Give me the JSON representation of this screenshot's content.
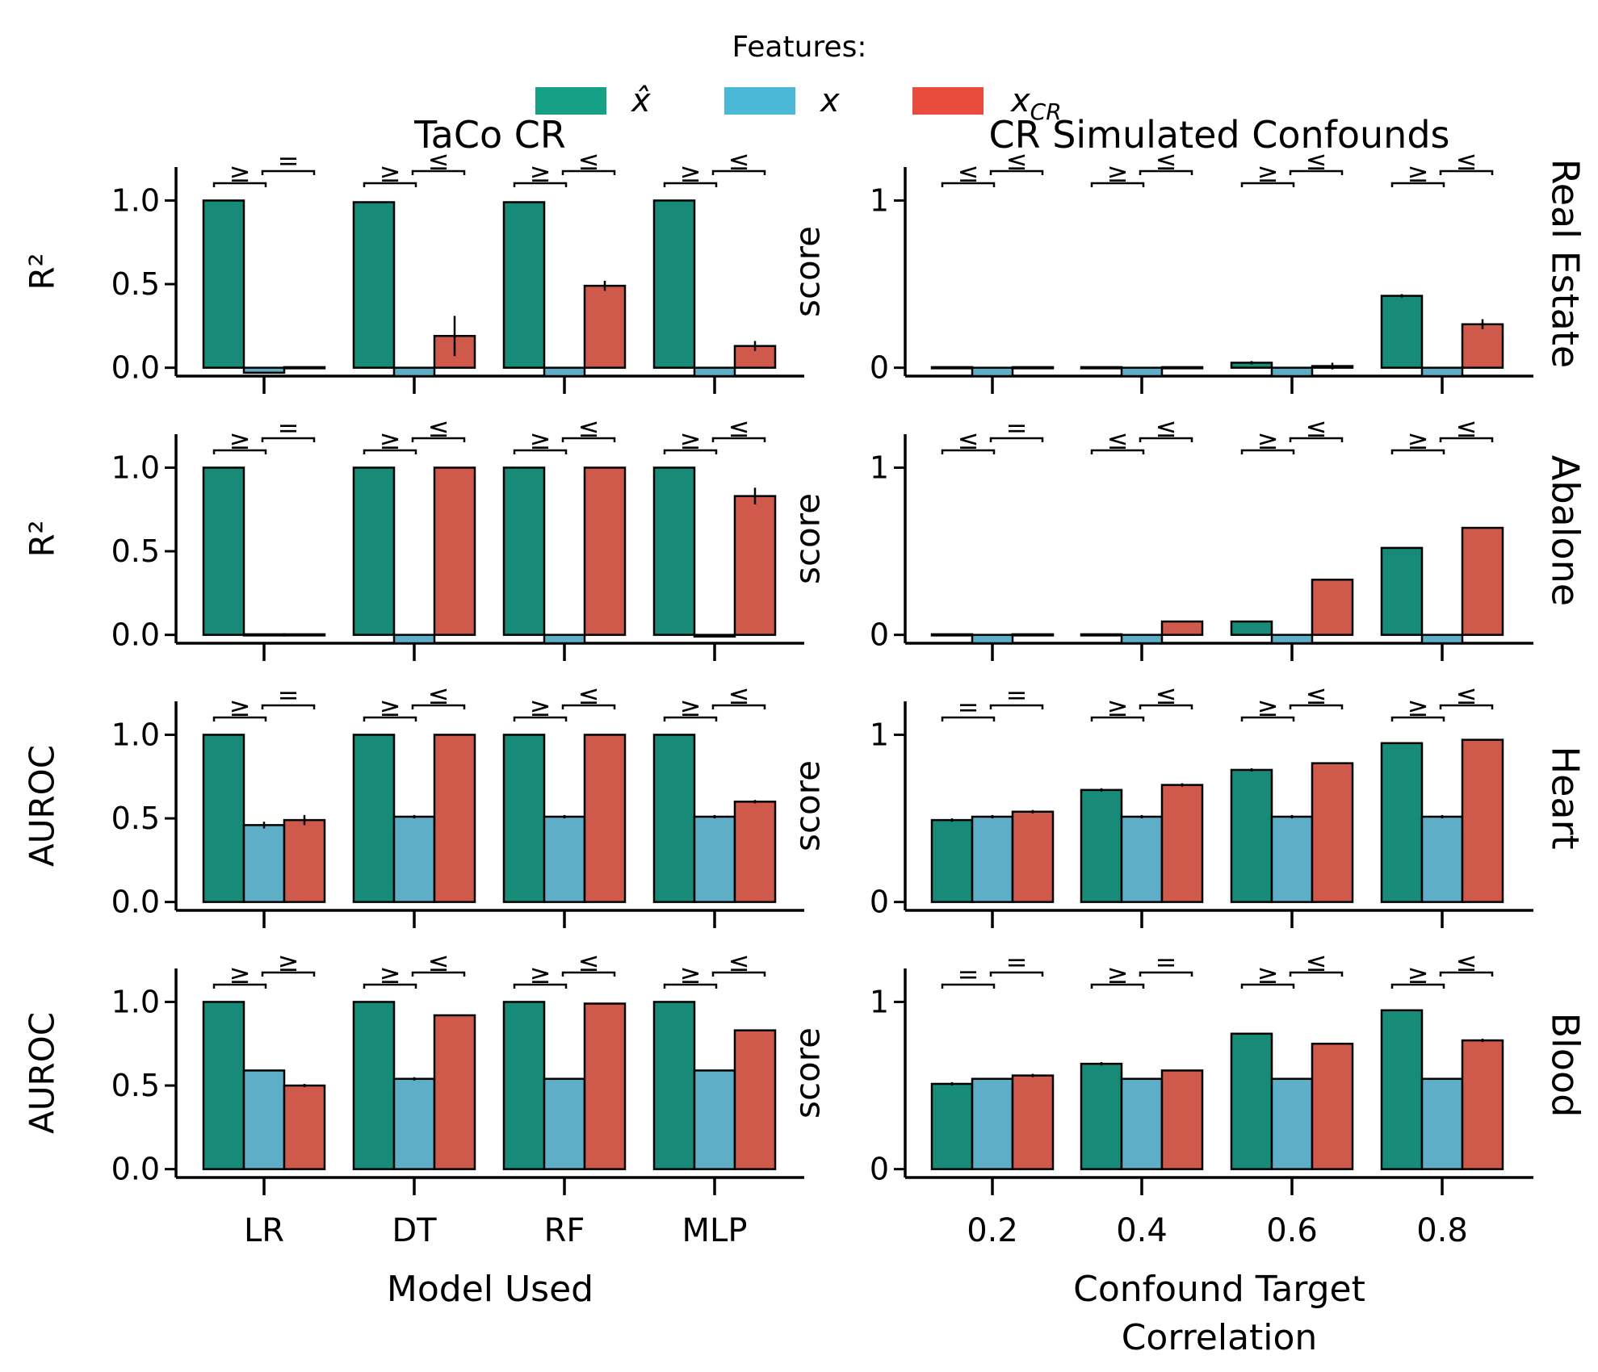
{
  "legend": {
    "title": "Features:",
    "entries": [
      {
        "label": "x̂",
        "sub": "",
        "color": "#16a085"
      },
      {
        "label": "x",
        "sub": "",
        "color": "#4ab8d6"
      },
      {
        "label": "x",
        "sub": "CR",
        "color": "#e74c3c"
      }
    ]
  },
  "colors": {
    "bar_xhat": "#178b78",
    "bar_x": "#5eaec7",
    "bar_xcr": "#cf5a4c",
    "axis": "#000000"
  },
  "chart_data": [
    {
      "type": "bar",
      "column_title": "TaCo CR",
      "row_label": "",
      "ylabel": "R²",
      "xlabel": "",
      "categories": [
        "LR",
        "DT",
        "RF",
        "MLP"
      ],
      "ylim": [
        -0.05,
        1.2
      ],
      "yticks": [
        "0.0",
        "0.5",
        "1.0"
      ],
      "ytick_values": [
        0,
        0.5,
        1.0
      ],
      "series": [
        {
          "values": [
            1.0,
            0.99,
            0.99,
            1.0
          ],
          "errors": [
            0,
            0,
            0,
            0
          ]
        },
        {
          "values": [
            -0.03,
            -0.05,
            -0.05,
            -0.05
          ],
          "errors": [
            0,
            0,
            0,
            0
          ]
        },
        {
          "values": [
            0.0,
            0.19,
            0.49,
            0.13
          ],
          "errors": [
            0,
            0.12,
            0.03,
            0.03
          ]
        }
      ],
      "significance": [
        [
          "≥",
          "="
        ],
        [
          "≥",
          "≤"
        ],
        [
          "≥",
          "≤"
        ],
        [
          "≥",
          "≤"
        ]
      ]
    },
    {
      "type": "bar",
      "column_title": "CR Simulated Confounds",
      "row_label": "Real Estate",
      "ylabel": "score",
      "xlabel": "",
      "categories": [
        "0.2",
        "0.4",
        "0.6",
        "0.8"
      ],
      "ylim": [
        -0.05,
        1.2
      ],
      "yticks": [
        "0",
        "1"
      ],
      "ytick_values": [
        0,
        1
      ],
      "series": [
        {
          "values": [
            0.0,
            0.0,
            0.03,
            0.43
          ],
          "errors": [
            0,
            0,
            0.01,
            0.01
          ]
        },
        {
          "values": [
            -0.05,
            -0.05,
            -0.05,
            -0.05
          ],
          "errors": [
            0,
            0,
            0,
            0
          ]
        },
        {
          "values": [
            0.0,
            0.0,
            0.01,
            0.26
          ],
          "errors": [
            0,
            0,
            0.02,
            0.03
          ]
        }
      ],
      "significance": [
        [
          "≤",
          "≤"
        ],
        [
          "≥",
          "≤"
        ],
        [
          "≥",
          "≤"
        ],
        [
          "≥",
          "≤"
        ]
      ]
    },
    {
      "type": "bar",
      "column_title": "",
      "row_label": "",
      "ylabel": "R²",
      "xlabel": "",
      "categories": [
        "LR",
        "DT",
        "RF",
        "MLP"
      ],
      "ylim": [
        -0.05,
        1.2
      ],
      "yticks": [
        "0.0",
        "0.5",
        "1.0"
      ],
      "ytick_values": [
        0,
        0.5,
        1.0
      ],
      "series": [
        {
          "values": [
            1.0,
            1.0,
            1.0,
            1.0
          ],
          "errors": [
            0,
            0,
            0,
            0
          ]
        },
        {
          "values": [
            0.0,
            -0.05,
            -0.05,
            -0.01
          ],
          "errors": [
            0,
            0,
            0,
            0
          ]
        },
        {
          "values": [
            0.0,
            1.0,
            1.0,
            0.83
          ],
          "errors": [
            0,
            0,
            0,
            0.05
          ]
        }
      ],
      "significance": [
        [
          "≥",
          "="
        ],
        [
          "≥",
          "≤"
        ],
        [
          "≥",
          "≤"
        ],
        [
          "≥",
          "≤"
        ]
      ]
    },
    {
      "type": "bar",
      "column_title": "",
      "row_label": "Abalone",
      "ylabel": "score",
      "xlabel": "",
      "categories": [
        "0.2",
        "0.4",
        "0.6",
        "0.8"
      ],
      "ylim": [
        -0.05,
        1.2
      ],
      "yticks": [
        "0",
        "1"
      ],
      "ytick_values": [
        0,
        1
      ],
      "series": [
        {
          "values": [
            0.0,
            0.0,
            0.08,
            0.52
          ],
          "errors": [
            0,
            0,
            0,
            0
          ]
        },
        {
          "values": [
            -0.05,
            -0.05,
            -0.05,
            -0.05
          ],
          "errors": [
            0,
            0,
            0,
            0
          ]
        },
        {
          "values": [
            0.0,
            0.08,
            0.33,
            0.64
          ],
          "errors": [
            0,
            0,
            0,
            0
          ]
        }
      ],
      "significance": [
        [
          "≤",
          "="
        ],
        [
          "≤",
          "≤"
        ],
        [
          "≥",
          "≤"
        ],
        [
          "≥",
          "≤"
        ]
      ]
    },
    {
      "type": "bar",
      "column_title": "",
      "row_label": "",
      "ylabel": "AUROC",
      "xlabel": "",
      "categories": [
        "LR",
        "DT",
        "RF",
        "MLP"
      ],
      "ylim": [
        -0.05,
        1.2
      ],
      "yticks": [
        "0.0",
        "0.5",
        "1.0"
      ],
      "ytick_values": [
        0,
        0.5,
        1.0
      ],
      "series": [
        {
          "values": [
            1.0,
            1.0,
            1.0,
            1.0
          ],
          "errors": [
            0,
            0,
            0,
            0
          ]
        },
        {
          "values": [
            0.46,
            0.51,
            0.51,
            0.51
          ],
          "errors": [
            0.02,
            0.01,
            0.01,
            0.01
          ]
        },
        {
          "values": [
            0.49,
            1.0,
            1.0,
            0.6
          ],
          "errors": [
            0.03,
            0,
            0,
            0.01
          ]
        }
      ],
      "significance": [
        [
          "≥",
          "="
        ],
        [
          "≥",
          "≤"
        ],
        [
          "≥",
          "≤"
        ],
        [
          "≥",
          "≤"
        ]
      ]
    },
    {
      "type": "bar",
      "column_title": "",
      "row_label": "Heart",
      "ylabel": "score",
      "xlabel": "",
      "categories": [
        "0.2",
        "0.4",
        "0.6",
        "0.8"
      ],
      "ylim": [
        -0.05,
        1.2
      ],
      "yticks": [
        "0",
        "1"
      ],
      "ytick_values": [
        0,
        1
      ],
      "series": [
        {
          "values": [
            0.49,
            0.67,
            0.79,
            0.95
          ],
          "errors": [
            0.01,
            0.01,
            0.01,
            0
          ]
        },
        {
          "values": [
            0.51,
            0.51,
            0.51,
            0.51
          ],
          "errors": [
            0.01,
            0.01,
            0.01,
            0.01
          ]
        },
        {
          "values": [
            0.54,
            0.7,
            0.83,
            0.97
          ],
          "errors": [
            0.01,
            0.01,
            0,
            0
          ]
        }
      ],
      "significance": [
        [
          "=",
          "="
        ],
        [
          "≥",
          "≤"
        ],
        [
          "≥",
          "≤"
        ],
        [
          "≥",
          "≤"
        ]
      ]
    },
    {
      "type": "bar",
      "column_title": "",
      "row_label": "",
      "ylabel": "AUROC",
      "xlabel": "Model Used",
      "categories": [
        "LR",
        "DT",
        "RF",
        "MLP"
      ],
      "ylim": [
        -0.05,
        1.2
      ],
      "yticks": [
        "0.0",
        "0.5",
        "1.0"
      ],
      "ytick_values": [
        0,
        0.5,
        1.0
      ],
      "series": [
        {
          "values": [
            1.0,
            1.0,
            1.0,
            1.0
          ],
          "errors": [
            0,
            0,
            0,
            0
          ]
        },
        {
          "values": [
            0.59,
            0.54,
            0.54,
            0.59
          ],
          "errors": [
            0,
            0.01,
            0,
            0
          ]
        },
        {
          "values": [
            0.5,
            0.92,
            0.99,
            0.83
          ],
          "errors": [
            0.01,
            0,
            0,
            0
          ]
        }
      ],
      "significance": [
        [
          "≥",
          "≥"
        ],
        [
          "≥",
          "≤"
        ],
        [
          "≥",
          "≤"
        ],
        [
          "≥",
          "≤"
        ]
      ]
    },
    {
      "type": "bar",
      "column_title": "",
      "row_label": "Blood",
      "ylabel": "score",
      "xlabel": "Confound Target\nCorrelation",
      "categories": [
        "0.2",
        "0.4",
        "0.6",
        "0.8"
      ],
      "ylim": [
        -0.05,
        1.2
      ],
      "yticks": [
        "0",
        "1"
      ],
      "ytick_values": [
        0,
        1
      ],
      "series": [
        {
          "values": [
            0.51,
            0.63,
            0.81,
            0.95
          ],
          "errors": [
            0.01,
            0.01,
            0,
            0
          ]
        },
        {
          "values": [
            0.54,
            0.54,
            0.54,
            0.54
          ],
          "errors": [
            0,
            0,
            0,
            0
          ]
        },
        {
          "values": [
            0.56,
            0.59,
            0.75,
            0.77
          ],
          "errors": [
            0.01,
            0,
            0,
            0.01
          ]
        }
      ],
      "significance": [
        [
          "=",
          "="
        ],
        [
          "≥",
          "="
        ],
        [
          "≥",
          "≤"
        ],
        [
          "≥",
          "≤"
        ]
      ]
    }
  ]
}
